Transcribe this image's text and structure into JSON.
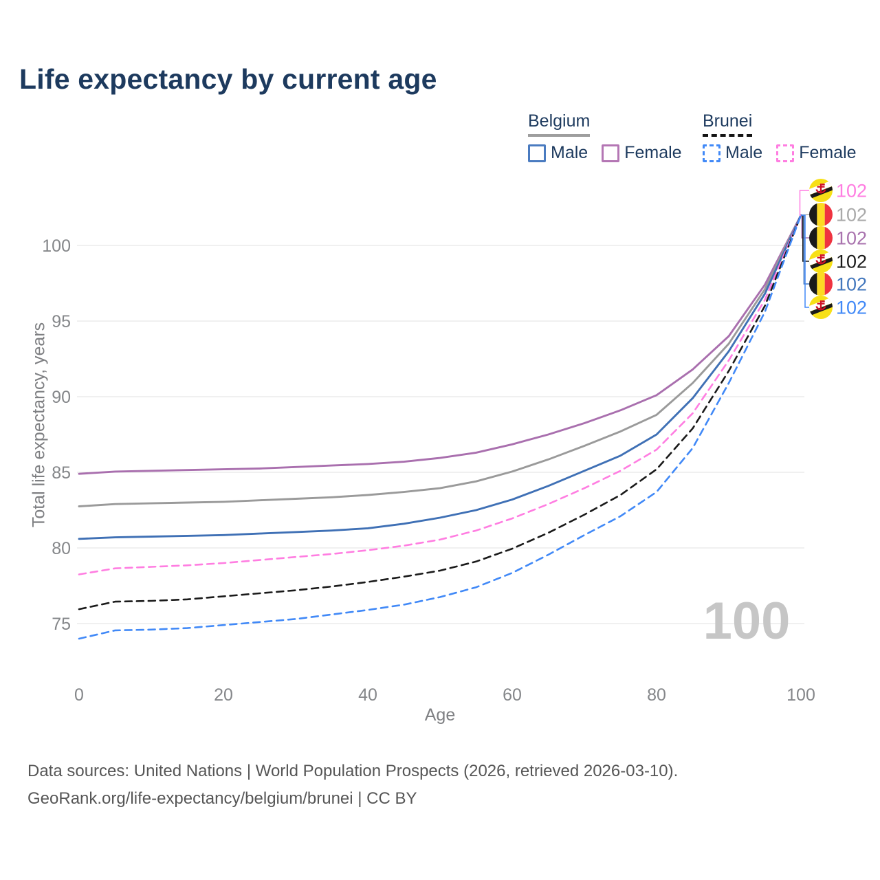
{
  "title": "Life expectancy by current age",
  "legend": {
    "belgium": {
      "title": "Belgium",
      "male_label": "Male",
      "female_label": "Female"
    },
    "brunei": {
      "title": "Brunei",
      "male_label": "Male",
      "female_label": "Female"
    }
  },
  "chart_data": {
    "type": "line",
    "title": "Life expectancy by current age",
    "xlabel": "Age",
    "ylabel": "Total life expectancy, years",
    "x_ticks": [
      0,
      20,
      40,
      60,
      80,
      100
    ],
    "y_ticks": [
      75,
      80,
      85,
      90,
      95,
      100
    ],
    "xlim": [
      0,
      100
    ],
    "ylim": [
      73,
      103
    ],
    "grid": "horizontal",
    "ages": [
      0,
      5,
      10,
      15,
      20,
      25,
      30,
      35,
      40,
      45,
      50,
      55,
      60,
      65,
      70,
      75,
      80,
      85,
      90,
      95,
      100
    ],
    "series": [
      {
        "name": "Belgium Female",
        "country": "Belgium",
        "sex": "Female",
        "color": "#a96fae",
        "dash": false,
        "values": [
          84.9,
          85.05,
          85.1,
          85.15,
          85.2,
          85.25,
          85.35,
          85.45,
          85.55,
          85.7,
          85.95,
          86.3,
          86.85,
          87.5,
          88.25,
          89.1,
          90.1,
          91.8,
          94.0,
          97.4,
          102
        ]
      },
      {
        "name": "Belgium",
        "country": "Belgium",
        "sex": "All",
        "color": "#9a9a9a",
        "dash": false,
        "values": [
          82.75,
          82.9,
          82.95,
          83.0,
          83.05,
          83.15,
          83.25,
          83.35,
          83.5,
          83.7,
          83.95,
          84.4,
          85.05,
          85.85,
          86.75,
          87.7,
          88.8,
          90.9,
          93.5,
          97.1,
          102
        ]
      },
      {
        "name": "Belgium Male",
        "country": "Belgium",
        "sex": "Male",
        "color": "#3f70b5",
        "dash": false,
        "values": [
          80.6,
          80.7,
          80.75,
          80.8,
          80.85,
          80.95,
          81.05,
          81.15,
          81.3,
          81.6,
          82.0,
          82.5,
          83.2,
          84.1,
          85.1,
          86.1,
          87.5,
          89.9,
          93.0,
          96.8,
          102
        ]
      },
      {
        "name": "Brunei Female",
        "country": "Brunei",
        "sex": "Female",
        "color": "#ff7de1",
        "dash": true,
        "values": [
          78.25,
          78.65,
          78.75,
          78.85,
          79.0,
          79.2,
          79.4,
          79.6,
          79.85,
          80.15,
          80.55,
          81.15,
          81.95,
          82.9,
          83.95,
          85.1,
          86.5,
          88.9,
          92.4,
          96.4,
          102
        ]
      },
      {
        "name": "Brunei",
        "country": "Brunei",
        "sex": "All",
        "color": "#1a1a1a",
        "dash": true,
        "values": [
          75.95,
          76.45,
          76.5,
          76.6,
          76.8,
          77.0,
          77.2,
          77.45,
          77.75,
          78.1,
          78.5,
          79.1,
          79.95,
          81.0,
          82.2,
          83.5,
          85.2,
          87.9,
          91.7,
          96.0,
          102
        ]
      },
      {
        "name": "Brunei Male",
        "country": "Brunei",
        "sex": "Male",
        "color": "#4189f7",
        "dash": true,
        "values": [
          74.0,
          74.55,
          74.6,
          74.7,
          74.9,
          75.1,
          75.3,
          75.6,
          75.9,
          76.25,
          76.75,
          77.4,
          78.35,
          79.55,
          80.85,
          82.1,
          83.7,
          86.6,
          90.9,
          95.6,
          102
        ]
      }
    ],
    "end_labels": [
      {
        "series": "Brunei Female",
        "flag": "brunei-flag-icon",
        "label": "102",
        "color": "#ff7de1"
      },
      {
        "series": "Belgium",
        "flag": "belgium-flag-icon",
        "label": "102",
        "color": "#a9a9a9"
      },
      {
        "series": "Belgium Female",
        "flag": "belgium-flag-icon",
        "label": "102",
        "color": "#a973ae"
      },
      {
        "series": "Brunei",
        "flag": "brunei-flag-icon",
        "label": "102",
        "color": "#1a1a1a"
      },
      {
        "series": "Belgium Male",
        "flag": "belgium-flag-icon",
        "label": "102",
        "color": "#4377bd"
      },
      {
        "series": "Brunei Male",
        "flag": "brunei-flag-icon",
        "label": "102",
        "color": "#4189f7"
      }
    ],
    "age_counter": "100",
    "colors": {
      "belgium_male": "#3f70b5",
      "belgium_female": "#a96fae",
      "belgium_all": "#9a9a9a",
      "brunei_male": "#4189f7",
      "brunei_female": "#ff7de1",
      "brunei_all": "#1a1a1a"
    }
  },
  "footer": {
    "source_line": "Data sources: United Nations | World Population Prospects (2026, retrieved 2026-03-10).",
    "attribution_line": "GeoRank.org/life-expectancy/belgium/brunei | CC BY"
  }
}
